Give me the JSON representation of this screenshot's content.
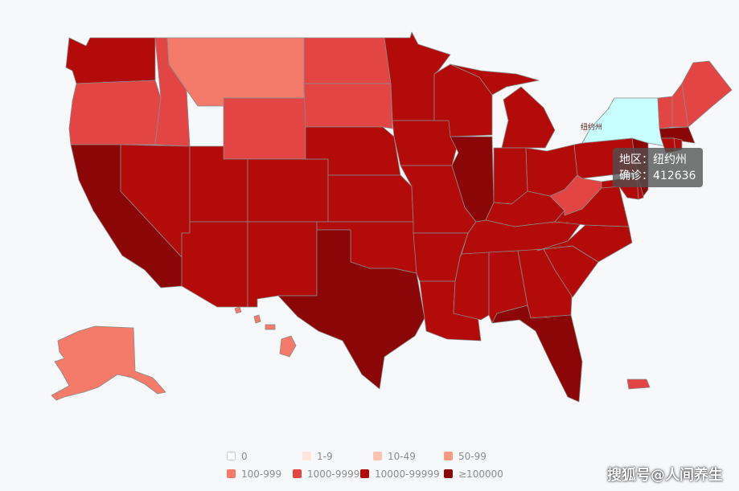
{
  "colors": {
    "background": "#f7f8fa",
    "legend_text": "#8c8c8c",
    "highlight": "#c8ffff",
    "tooltip_bg": "#505050",
    "tooltip_text": "#ffffff"
  },
  "legend": {
    "items": [
      {
        "label": "0",
        "color": "#ffffff"
      },
      {
        "label": "1-9",
        "color": "#ffe5dc"
      },
      {
        "label": "10-49",
        "color": "#fdc2b0"
      },
      {
        "label": "50-99",
        "color": "#f99a84"
      },
      {
        "label": "100-999",
        "color": "#f47a6a"
      },
      {
        "label": "1000-9999",
        "color": "#e34545"
      },
      {
        "label": "10000-99999",
        "color": "#b30a0a"
      },
      {
        "label": "≥100000",
        "color": "#8b0707"
      }
    ]
  },
  "map": {
    "highlighted_label": "纽约州",
    "states": [
      {
        "name": "Washington",
        "bin": "10000-99999"
      },
      {
        "name": "Oregon",
        "bin": "1000-9999"
      },
      {
        "name": "California",
        "bin": "≥100000"
      },
      {
        "name": "Idaho",
        "bin": "1000-9999"
      },
      {
        "name": "Nevada",
        "bin": "10000-99999"
      },
      {
        "name": "Montana",
        "bin": "100-999"
      },
      {
        "name": "Wyoming",
        "bin": "1000-9999"
      },
      {
        "name": "Utah",
        "bin": "10000-99999"
      },
      {
        "name": "Colorado",
        "bin": "10000-99999"
      },
      {
        "name": "Arizona",
        "bin": "10000-99999"
      },
      {
        "name": "New Mexico",
        "bin": "10000-99999"
      },
      {
        "name": "North Dakota",
        "bin": "1000-9999"
      },
      {
        "name": "South Dakota",
        "bin": "1000-9999"
      },
      {
        "name": "Nebraska",
        "bin": "10000-99999"
      },
      {
        "name": "Kansas",
        "bin": "10000-99999"
      },
      {
        "name": "Oklahoma",
        "bin": "10000-99999"
      },
      {
        "name": "Texas",
        "bin": "≥100000"
      },
      {
        "name": "Minnesota",
        "bin": "10000-99999"
      },
      {
        "name": "Iowa",
        "bin": "10000-99999"
      },
      {
        "name": "Missouri",
        "bin": "10000-99999"
      },
      {
        "name": "Arkansas",
        "bin": "10000-99999"
      },
      {
        "name": "Louisiana",
        "bin": "10000-99999"
      },
      {
        "name": "Wisconsin",
        "bin": "10000-99999"
      },
      {
        "name": "Illinois",
        "bin": "≥100000"
      },
      {
        "name": "Michigan",
        "bin": "10000-99999"
      },
      {
        "name": "Indiana",
        "bin": "10000-99999"
      },
      {
        "name": "Ohio",
        "bin": "10000-99999"
      },
      {
        "name": "Kentucky",
        "bin": "10000-99999"
      },
      {
        "name": "Tennessee",
        "bin": "10000-99999"
      },
      {
        "name": "Mississippi",
        "bin": "10000-99999"
      },
      {
        "name": "Alabama",
        "bin": "10000-99999"
      },
      {
        "name": "Georgia",
        "bin": "10000-99999"
      },
      {
        "name": "Florida",
        "bin": "≥100000"
      },
      {
        "name": "South Carolina",
        "bin": "10000-99999"
      },
      {
        "name": "North Carolina",
        "bin": "10000-99999"
      },
      {
        "name": "Virginia",
        "bin": "10000-99999"
      },
      {
        "name": "West Virginia",
        "bin": "1000-9999"
      },
      {
        "name": "Pennsylvania",
        "bin": "10000-99999"
      },
      {
        "name": "New York",
        "bin": "highlight"
      },
      {
        "name": "New Jersey",
        "bin": "≥100000"
      },
      {
        "name": "Maryland",
        "bin": "10000-99999"
      },
      {
        "name": "Delaware",
        "bin": "10000-99999"
      },
      {
        "name": "Vermont",
        "bin": "1000-9999"
      },
      {
        "name": "New Hampshire",
        "bin": "1000-9999"
      },
      {
        "name": "Maine",
        "bin": "1000-9999"
      },
      {
        "name": "Massachusetts",
        "bin": "≥100000"
      },
      {
        "name": "Connecticut",
        "bin": "10000-99999"
      },
      {
        "name": "Rhode Island",
        "bin": "10000-99999"
      },
      {
        "name": "Alaska",
        "bin": "100-999"
      },
      {
        "name": "Hawaii",
        "bin": "100-999"
      },
      {
        "name": "Puerto Rico",
        "bin": "1000-9999"
      }
    ]
  },
  "tooltip": {
    "region_label": "地区：纽约州",
    "confirmed_label": "确诊：412636"
  },
  "watermark": "搜狐号@人间养生"
}
